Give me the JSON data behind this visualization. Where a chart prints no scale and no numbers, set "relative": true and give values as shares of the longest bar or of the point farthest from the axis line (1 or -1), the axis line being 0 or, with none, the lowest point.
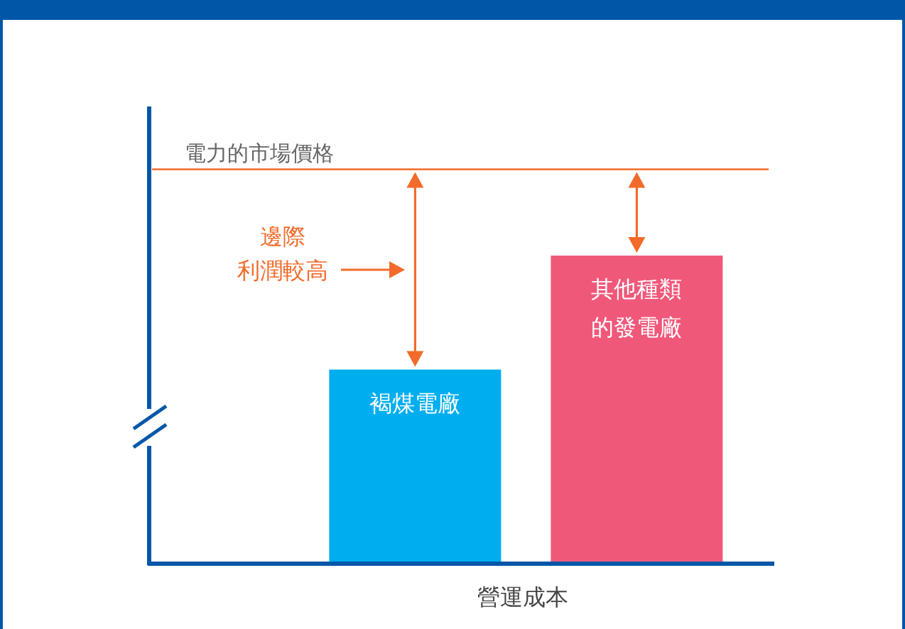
{
  "chart_data": {
    "type": "bar",
    "relative": true,
    "categories": [
      "褐煤電廠",
      "其他種類的發電廠"
    ],
    "values": [
      0.63,
      1
    ],
    "colors": [
      "#00aeef",
      "#f0587a"
    ],
    "xlabel": "營運成本",
    "ref_lines": [
      {
        "axis": "y",
        "value": 1.28,
        "label": "電力的市場價格",
        "color": "#f26b2a"
      }
    ],
    "annotations": [
      "邊際",
      "利潤較高"
    ]
  }
}
